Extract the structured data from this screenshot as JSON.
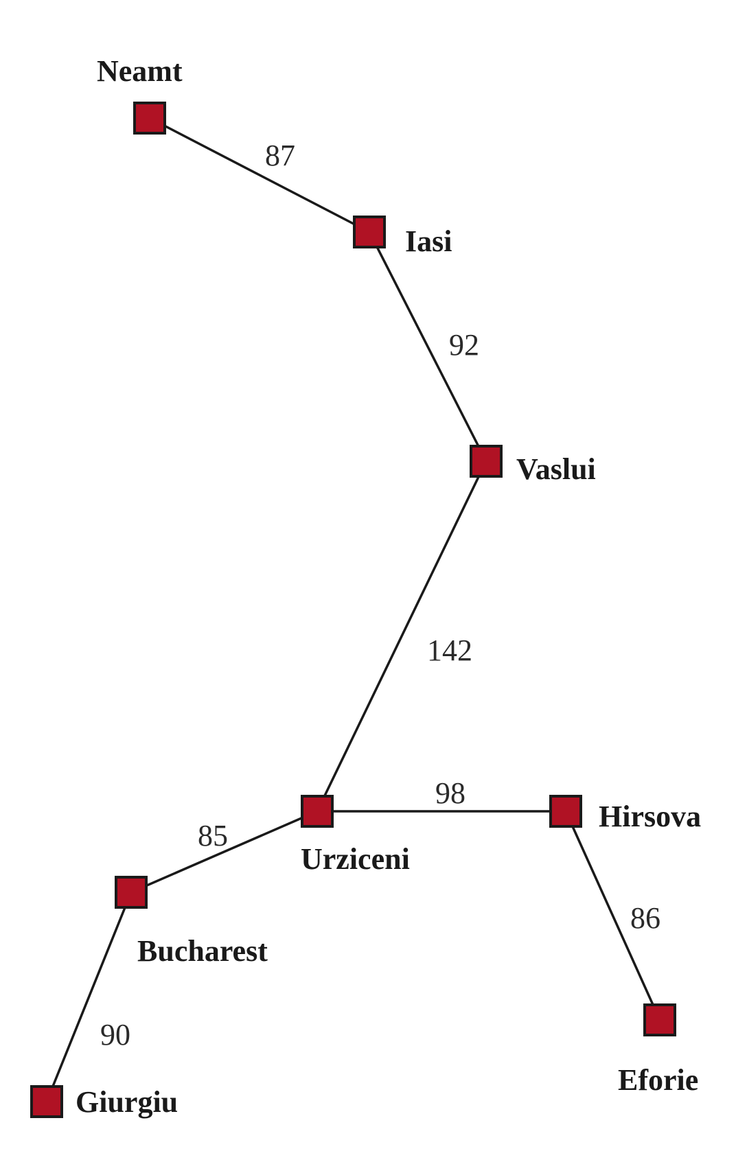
{
  "graph": {
    "title": "",
    "nodes": [
      {
        "id": "neamt",
        "label": "Neamt"
      },
      {
        "id": "iasi",
        "label": "Iasi"
      },
      {
        "id": "vaslui",
        "label": "Vaslui"
      },
      {
        "id": "urziceni",
        "label": "Urziceni"
      },
      {
        "id": "hirsova",
        "label": "Hirsova"
      },
      {
        "id": "bucharest",
        "label": "Bucharest"
      },
      {
        "id": "eforie",
        "label": "Eforie"
      },
      {
        "id": "giurgiu",
        "label": "Giurgiu"
      }
    ],
    "edges": [
      {
        "from": "neamt",
        "to": "iasi",
        "distance": "87"
      },
      {
        "from": "iasi",
        "to": "vaslui",
        "distance": "92"
      },
      {
        "from": "vaslui",
        "to": "urziceni",
        "distance": "142"
      },
      {
        "from": "urziceni",
        "to": "hirsova",
        "distance": "98"
      },
      {
        "from": "urziceni",
        "to": "bucharest",
        "distance": "85"
      },
      {
        "from": "hirsova",
        "to": "eforie",
        "distance": "86"
      },
      {
        "from": "bucharest",
        "to": "giurgiu",
        "distance": "90"
      }
    ]
  },
  "colors": {
    "node_fill": "#b01224",
    "node_stroke": "#1a1a1a",
    "edge": "#1a1a1a"
  }
}
